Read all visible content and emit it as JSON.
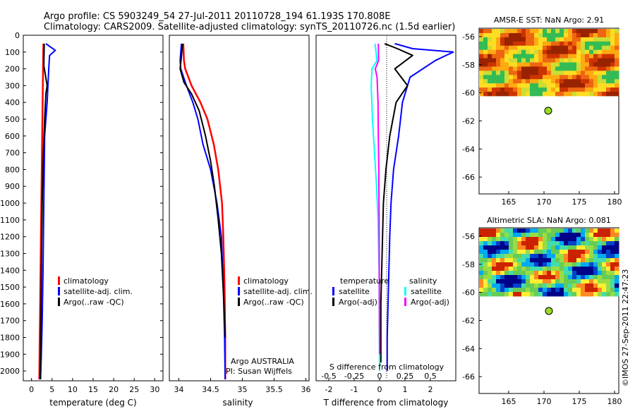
{
  "header": {
    "line1": "Argo profile: CS 5903249_54 27-Jul-2011 20110728_194 61.193S 170.808E",
    "line2": "Climatology: CARS2009. Satellite-adjusted climatology: synTS_20110726.nc (1.5d earlier)"
  },
  "footer_stamp": "©IMOS 27-Sep-2011 22:47:23",
  "colors": {
    "climatology": "#ff0000",
    "satellite": "#0000ff",
    "argo": "#000000",
    "sal_satellite": "#00ffff",
    "sal_argo": "#ff00ff",
    "float_marker": "#99dd22"
  },
  "depth_ticks": [
    "0",
    "100",
    "200",
    "300",
    "400",
    "500",
    "600",
    "700",
    "800",
    "900",
    "1000",
    "1100",
    "1200",
    "1300",
    "1400",
    "1500",
    "1600",
    "1700",
    "1800",
    "1900",
    "2000"
  ],
  "panels": {
    "temperature": {
      "xlabel": "temperature (deg C)",
      "xticks": [
        "0",
        "5",
        "10",
        "15",
        "20",
        "25",
        "30"
      ],
      "legend": [
        "climatology",
        "satellite-adj. clim.",
        "Argo(..raw -QC)"
      ]
    },
    "salinity": {
      "xlabel": "salinity",
      "xticks": [
        "34",
        "34.5",
        "35",
        "35.5",
        "36"
      ],
      "legend": [
        "climatology",
        "satellite-adj. clim.",
        "Argo(..raw -QC)"
      ],
      "credit1": "Argo AUSTRALIA",
      "credit2": "PI: Susan Wijffels"
    },
    "difference": {
      "xlabel_bottom": "T difference from climatology",
      "xlabel_top": "S difference from climatology",
      "xticks_bottom": [
        "-2",
        "-1",
        "0",
        "1",
        "2"
      ],
      "xticks_top": [
        "-0.5",
        "-0.25",
        "0",
        "0.25",
        "0.5"
      ],
      "legend_temp_title": "temperature",
      "legend_sal_title": "salinity",
      "legend_temp": [
        "satellite",
        "Argo(-adj)"
      ],
      "legend_sal": [
        "satellite",
        "Argo(-adj)"
      ]
    },
    "sst_map": {
      "title": "AMSR-E SST: NaN Argo: 2.91",
      "yticks": [
        "-56",
        "-58",
        "-60",
        "-62",
        "-64",
        "-66"
      ],
      "xticks": [
        "165",
        "170",
        "175",
        "180"
      ]
    },
    "sla_map": {
      "title": "Altimetric SLA: NaN Argo: 0.081",
      "yticks": [
        "-56",
        "-58",
        "-60",
        "-62",
        "-64",
        "-66"
      ],
      "xticks": [
        "165",
        "170",
        "175",
        "180"
      ]
    }
  },
  "chart_data": [
    {
      "type": "line",
      "title": "",
      "xlabel": "temperature (deg C)",
      "ylabel": "",
      "xlim": [
        -2,
        32
      ],
      "ylim": [
        2050,
        0
      ],
      "series": [
        {
          "name": "climatology",
          "x": [
            2.9,
            2.8,
            2.7,
            2.6,
            2.5,
            2.4,
            2.3,
            2.2,
            2.1,
            2.0,
            1.9
          ],
          "y": [
            50,
            200,
            400,
            600,
            800,
            1000,
            1200,
            1400,
            1600,
            1800,
            2050
          ]
        },
        {
          "name": "satellite-adj. clim.",
          "x": [
            3.5,
            5.8,
            4.4,
            4.2,
            3.8,
            3.2,
            3.0,
            2.8,
            2.6,
            2.4,
            2.2
          ],
          "y": [
            50,
            90,
            120,
            200,
            400,
            600,
            1000,
            1400,
            1700,
            1900,
            2050
          ]
        },
        {
          "name": "Argo(..raw -QC)",
          "x": [
            3.1,
            3.0,
            3.8,
            3.5,
            3.2,
            2.9,
            2.6,
            2.4,
            2.3,
            2.2,
            2.1
          ],
          "y": [
            50,
            180,
            300,
            350,
            500,
            700,
            1000,
            1400,
            1700,
            1900,
            2050
          ]
        }
      ]
    },
    {
      "type": "line",
      "title": "",
      "xlabel": "salinity",
      "ylabel": "",
      "xlim": [
        33.85,
        36.05
      ],
      "ylim": [
        2050,
        0
      ],
      "series": [
        {
          "name": "climatology",
          "x": [
            34.07,
            34.08,
            34.1,
            34.2,
            34.34,
            34.45,
            34.55,
            34.62,
            34.68,
            34.7,
            34.72,
            34.73,
            34.73
          ],
          "y": [
            50,
            150,
            200,
            300,
            400,
            500,
            650,
            800,
            1000,
            1200,
            1500,
            1800,
            2050
          ]
        },
        {
          "name": "satellite-adj. clim.",
          "x": [
            34.04,
            34.02,
            34.03,
            34.12,
            34.22,
            34.3,
            34.38,
            34.5,
            34.6,
            34.67,
            34.7,
            34.72,
            34.73
          ],
          "y": [
            50,
            150,
            200,
            300,
            400,
            500,
            650,
            800,
            1000,
            1200,
            1500,
            1800,
            2050
          ]
        },
        {
          "name": "Argo(..raw -QC)",
          "x": [
            34.06,
            34.02,
            34.08,
            34.2,
            34.32,
            34.42,
            34.5,
            34.56,
            34.62,
            34.67,
            34.71,
            34.73
          ],
          "y": [
            50,
            200,
            280,
            350,
            450,
            600,
            750,
            900,
            1100,
            1300,
            1600,
            1800
          ]
        }
      ]
    },
    {
      "type": "line",
      "title": "",
      "xlabel": "T difference from climatology",
      "ylabel": "",
      "xlim": [
        -2.5,
        3
      ],
      "ylim": [
        2050,
        0
      ],
      "series": [
        {
          "name": "temperature satellite",
          "x": [
            0.6,
            1.3,
            2.9,
            2.2,
            1.2,
            0.9,
            0.75,
            0.55,
            0.45,
            0.4,
            0.35,
            0.3,
            0.3
          ],
          "y": [
            50,
            80,
            100,
            150,
            250,
            400,
            600,
            800,
            1000,
            1200,
            1500,
            1800,
            2000
          ]
        },
        {
          "name": "temperature Argo(-adj)",
          "x": [
            0.2,
            0.7,
            1.3,
            0.6,
            1.1,
            0.65,
            0.4,
            0.25,
            0.15,
            0.1,
            0.05,
            0.05
          ],
          "y": [
            50,
            80,
            120,
            200,
            300,
            400,
            600,
            800,
            1000,
            1300,
            1600,
            1950
          ]
        },
        {
          "name": "salinity satellite",
          "x": [
            -0.18,
            -0.1,
            -0.3,
            -0.33,
            -0.28,
            -0.2,
            -0.12,
            -0.06,
            -0.02,
            -0.01,
            0.0
          ],
          "y": [
            50,
            150,
            200,
            300,
            500,
            700,
            900,
            1100,
            1400,
            1700,
            2000
          ]
        },
        {
          "name": "salinity Argo(-adj)",
          "x": [
            -0.05,
            -0.04,
            -0.17,
            -0.1,
            -0.06,
            -0.05,
            -0.03,
            -0.02,
            -0.01,
            0.0
          ],
          "y": [
            50,
            150,
            200,
            250,
            400,
            600,
            800,
            1100,
            1500,
            1900
          ]
        }
      ]
    }
  ]
}
